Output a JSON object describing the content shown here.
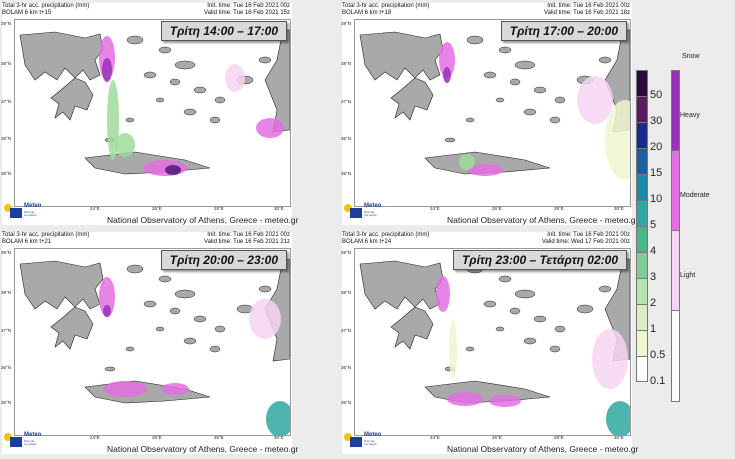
{
  "panels": [
    {
      "title": "Total 3-hr acc. precipitation (mm)",
      "model": "BOLAM 6 km t+15",
      "init": "Init. time: Tue 16 Feb 2021 00z",
      "valid": "Valid time: Tue 16 Feb 2021 15z",
      "time_label": "Τρίτη 14:00 – 17:00"
    },
    {
      "title": "Total 3-hr acc. precipitation (mm)",
      "model": "BOLAM 6 km t+18",
      "init": "Init. time: Tue 16 Feb 2021 00z",
      "valid": "Valid time: Tue 16 Feb 2021 18z",
      "time_label": "Τρίτη 17:00 – 20:00"
    },
    {
      "title": "Total 3-hr acc. precipitation (mm)",
      "model": "BOLAM 6 km t+21",
      "init": "Init. time: Tue 16 Feb 2021 00z",
      "valid": "Valid time: Tue 16 Feb 2021 21z",
      "time_label": "Τρίτη 20:00 – 23:00"
    },
    {
      "title": "Total 3-hr acc. precipitation (mm)",
      "model": "BOLAM 6 km t+24",
      "init": "Init. time: Tue 16 Feb 2021 00z",
      "valid": "Valid time: Wed 17 Feb 2021 00z",
      "time_label": "Τρίτη 23:00 – Τετάρτη 02:00"
    }
  ],
  "footer": "National Observatory of Athens, Greece - meteo.gr",
  "logo": {
    "name": "Meteo",
    "sub1": "Όλα για",
    "sub2": "τον καιρό"
  },
  "lat_labels": [
    "39°N",
    "38°N",
    "37°N",
    "36°N",
    "35°N"
  ],
  "lon_labels": [
    "24°E",
    "26°E",
    "28°E",
    "30°E"
  ],
  "precip_legend": {
    "labels": [
      "50",
      "30",
      "20",
      "15",
      "10",
      "5",
      "4",
      "3",
      "2",
      "1",
      "0.5",
      "0.1"
    ],
    "colors": [
      "#2a0b3d",
      "#5a1b5e",
      "#1a2a8a",
      "#1a5f9e",
      "#1b8aa8",
      "#2ea8a0",
      "#48b888",
      "#7fcc98",
      "#b8e3b0",
      "#dcefc4",
      "#eef5d0",
      "#ffffff"
    ]
  },
  "snow_legend": {
    "title": "Snow",
    "labels": [
      "Heavy",
      "Moderate",
      "Light"
    ],
    "colors": [
      "#9b30b8",
      "#e46ee0",
      "#f6d4f2",
      "#ffffff"
    ]
  }
}
